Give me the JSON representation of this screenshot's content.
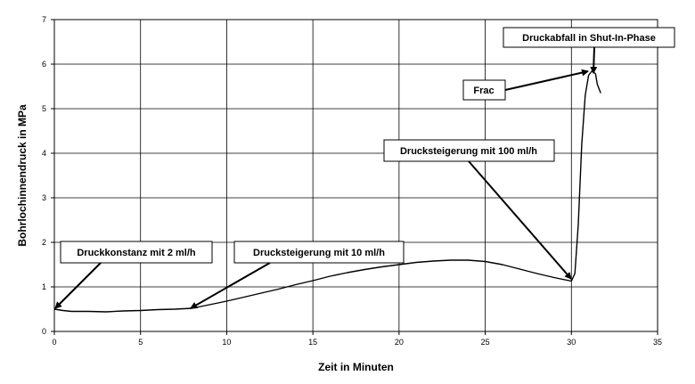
{
  "chart_data": {
    "type": "line",
    "xlabel": "Zeit in Minuten",
    "ylabel": "Bohrlochinnendruck in MPa",
    "xlim": [
      0,
      35
    ],
    "ylim": [
      0,
      7
    ],
    "xticks": [
      "0",
      "5",
      "10",
      "15",
      "20",
      "25",
      "30",
      "35"
    ],
    "yticks": [
      "0",
      "1",
      "2",
      "3",
      "4",
      "5",
      "6",
      "7"
    ],
    "grid": true,
    "series": [
      {
        "x": [
          0,
          0.5,
          1,
          2,
          3,
          4,
          5,
          6,
          7,
          8,
          9,
          10,
          11,
          12,
          13,
          14,
          15,
          16,
          17,
          18,
          19,
          20,
          21,
          22,
          23,
          24,
          25,
          26,
          27,
          28,
          29,
          30,
          30.2,
          30.4,
          30.6,
          30.8,
          31.0,
          31.2,
          31.4,
          31.5,
          31.7
        ],
        "y": [
          0.5,
          0.47,
          0.45,
          0.45,
          0.44,
          0.46,
          0.47,
          0.49,
          0.5,
          0.52,
          0.6,
          0.68,
          0.77,
          0.86,
          0.95,
          1.05,
          1.14,
          1.24,
          1.32,
          1.39,
          1.45,
          1.5,
          1.55,
          1.58,
          1.6,
          1.6,
          1.57,
          1.5,
          1.4,
          1.3,
          1.21,
          1.13,
          1.3,
          2.4,
          4.2,
          5.3,
          5.75,
          5.85,
          5.78,
          5.55,
          5.35
        ],
        "color": "#000000"
      }
    ],
    "annotations": [
      {
        "text": "Druckkonstanz mit 2 ml/h",
        "target": [
          0,
          0.5
        ]
      },
      {
        "text": "Drucksteigerung mit 10 ml/h",
        "target": [
          8,
          0.52
        ]
      },
      {
        "text": "Drucksteigerung mit 100 ml/h",
        "target": [
          30.2,
          1.13
        ]
      },
      {
        "text": "Frac",
        "target": [
          31.2,
          5.83
        ]
      },
      {
        "text": "Druckabfall in Shut-In-Phase",
        "target": [
          31.3,
          5.85
        ]
      }
    ]
  }
}
